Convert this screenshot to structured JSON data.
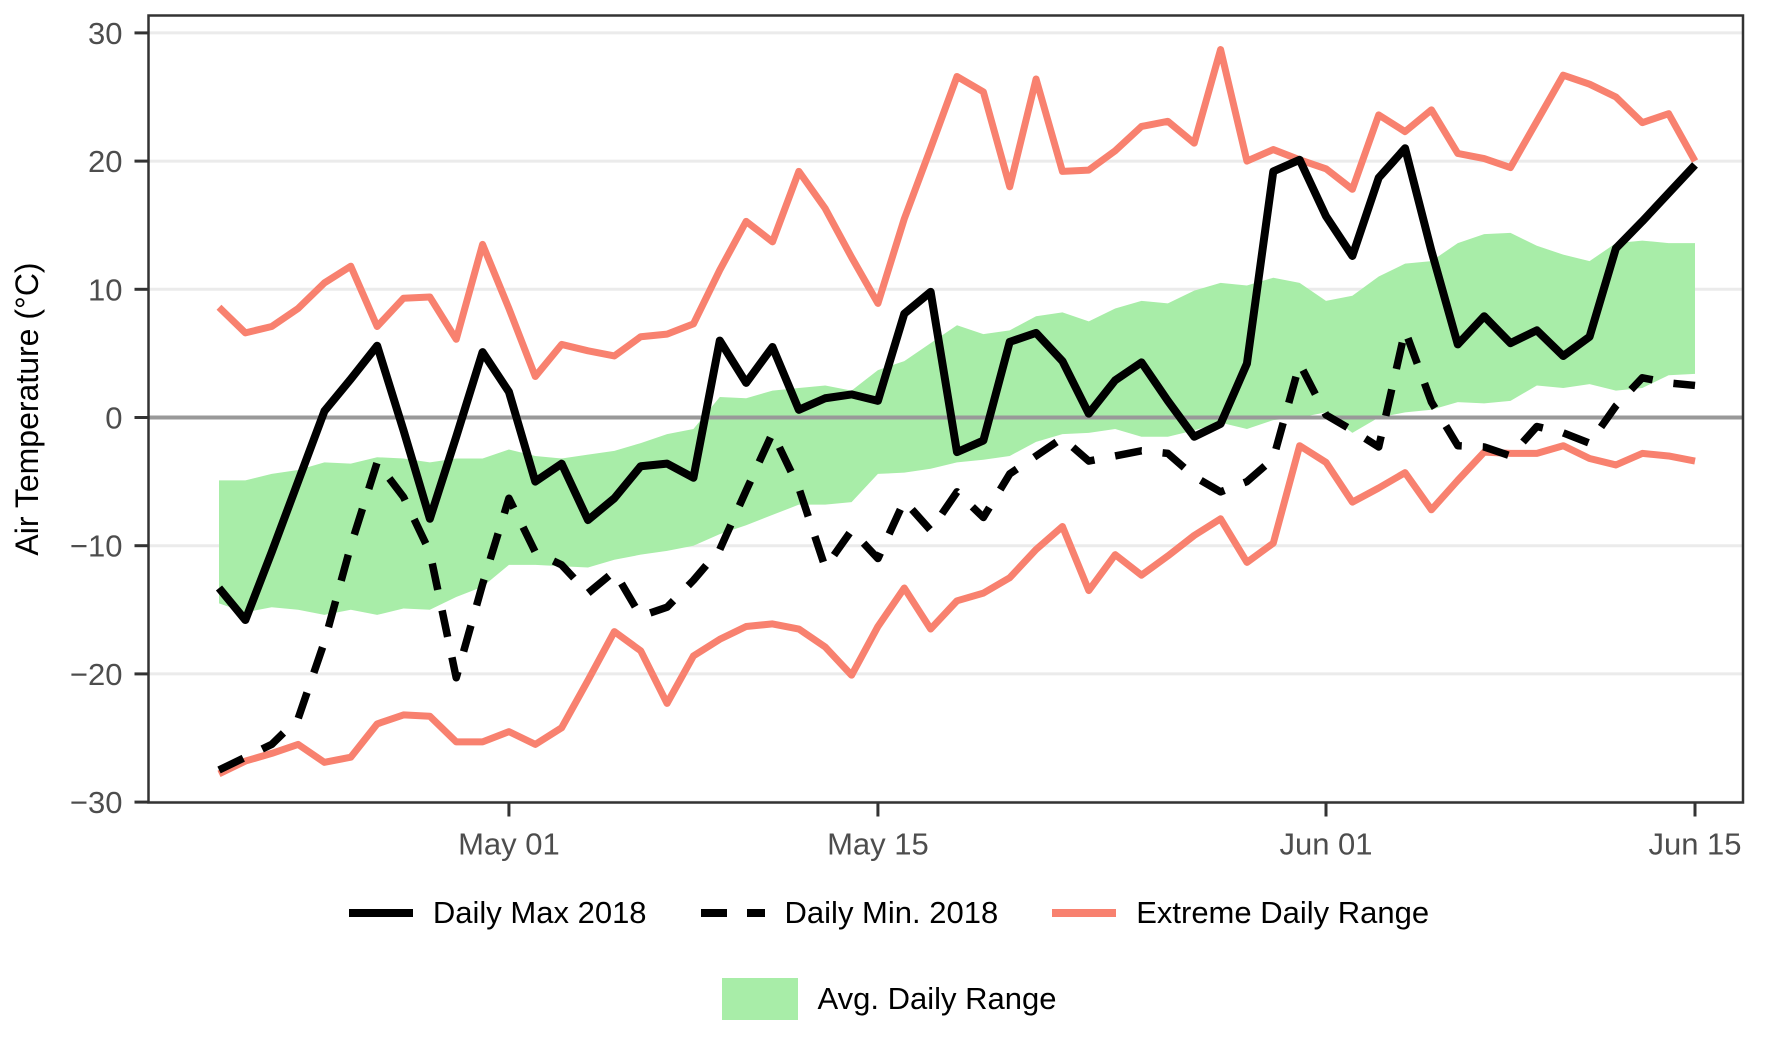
{
  "colors": {
    "daily_lines": "#000000",
    "extreme_range": "#F8816F",
    "avg_band": "#A8EDA8",
    "gridline": "#EBEBEB",
    "zero_line": "#999999",
    "axis_text": "#4D4D4D",
    "panel_border": "#333333"
  },
  "chart_data": {
    "type": "line",
    "title": "",
    "xlabel": "",
    "ylabel": "Air Temperature (°C)",
    "ylim": [
      -30,
      30
    ],
    "grid": "horizontal-only",
    "legend_position": "bottom",
    "zero_line": 0,
    "n_points": 57,
    "y_ticks": [
      {
        "value": 30,
        "label": "30"
      },
      {
        "value": 20,
        "label": "20"
      },
      {
        "value": 10,
        "label": "10"
      },
      {
        "value": 0,
        "label": "0"
      },
      {
        "value": -10,
        "label": "−10"
      },
      {
        "value": -20,
        "label": "−20"
      },
      {
        "value": -30,
        "label": "−30"
      }
    ],
    "x_ticks": [
      {
        "index": 11,
        "label": "May 01"
      },
      {
        "index": 25,
        "label": "May 15"
      },
      {
        "index": 42,
        "label": "Jun 01"
      },
      {
        "index": 56,
        "label": "Jun 15"
      }
    ],
    "series": [
      {
        "name": "Daily Max 2018",
        "type": "line",
        "style": "solid",
        "color": "#000000",
        "values": [
          -13.3,
          -15.8,
          -10.5,
          -5,
          0.5,
          3,
          5.6,
          -1,
          -7.9,
          -1.5,
          5.1,
          2,
          -5,
          -3.6,
          -8,
          -6.3,
          -3.8,
          -3.6,
          -4.7,
          6,
          2.7,
          5.5,
          0.6,
          1.5,
          1.8,
          1.3,
          8.1,
          9.8,
          -2.7,
          -1.8,
          5.9,
          6.6,
          4.4,
          0.3,
          2.9,
          4.3,
          1.3,
          -1.5,
          -0.5,
          4.2,
          19.2,
          20.1,
          15.7,
          12.6,
          18.7,
          21,
          13,
          5.7,
          7.9,
          5.8,
          6.8,
          4.8,
          6.3,
          13.2,
          15.3,
          17.5,
          19.7
        ]
      },
      {
        "name": "Daily Min. 2018",
        "type": "line",
        "style": "dashed",
        "color": "#000000",
        "values": [
          -27.5,
          -26.5,
          -25.5,
          -23.5,
          -17.5,
          -10,
          -3.5,
          -6.2,
          -10.5,
          -20.3,
          -13,
          -6.3,
          -10.5,
          -11.5,
          -13.7,
          -12,
          -15.5,
          -14.8,
          -12.7,
          -10.3,
          -5.7,
          -1.2,
          -5.5,
          -11.7,
          -8.8,
          -11,
          -6.5,
          -8.8,
          -5.8,
          -7.8,
          -4.4,
          -3,
          -1.6,
          -3.4,
          -3,
          -2.6,
          -2.8,
          -4.6,
          -5.8,
          -5,
          -3.2,
          4.2,
          0.2,
          -1,
          -2.3,
          6.8,
          1.2,
          -2.2,
          -2.3,
          -3,
          -0.7,
          -1.2,
          -2,
          0.9,
          3.1,
          2.7,
          2.5
        ]
      },
      {
        "name": "Extreme Daily Range",
        "type": "band-lines",
        "style": "solid",
        "color": "#F8816F",
        "upper": [
          8.6,
          6.6,
          7.1,
          8.5,
          10.5,
          11.8,
          7.1,
          9.3,
          9.4,
          6.1,
          13.5,
          8.5,
          3.2,
          5.7,
          5.2,
          4.8,
          6.3,
          6.5,
          7.3,
          11.5,
          15.3,
          13.7,
          19.2,
          16.3,
          12.5,
          8.9,
          15.5,
          21,
          26.6,
          25.4,
          18,
          26.4,
          19.2,
          19.3,
          20.8,
          22.7,
          23.1,
          21.4,
          28.7,
          20,
          20.9,
          20.1,
          19.4,
          17.8,
          23.6,
          22.3,
          24,
          20.6,
          20.2,
          19.5,
          23.1,
          26.7,
          26,
          25,
          23,
          23.7,
          20
        ],
        "lower": [
          -27.8,
          -26.8,
          -26.2,
          -25.5,
          -26.9,
          -26.5,
          -23.9,
          -23.2,
          -23.3,
          -25.3,
          -25.3,
          -24.5,
          -25.5,
          -24.2,
          -20.5,
          -16.7,
          -18.2,
          -22.3,
          -18.6,
          -17.3,
          -16.3,
          -16.1,
          -16.5,
          -17.9,
          -20.1,
          -16.3,
          -13.3,
          -16.5,
          -14.3,
          -13.7,
          -12.5,
          -10.3,
          -8.5,
          -13.5,
          -10.7,
          -12.3,
          -10.8,
          -9.2,
          -7.9,
          -11.3,
          -9.8,
          -2.2,
          -3.5,
          -6.6,
          -5.5,
          -4.3,
          -7.2,
          -4.9,
          -2.7,
          -2.8,
          -2.8,
          -2.2,
          -3.2,
          -3.7,
          -2.8,
          -3,
          -3.4
        ]
      },
      {
        "name": "Avg. Daily Range",
        "type": "area-band",
        "color": "#A8EDA8",
        "upper": [
          -4.9,
          -4.9,
          -4.4,
          -4.1,
          -3.5,
          -3.6,
          -3.1,
          -3.2,
          -3.5,
          -3.2,
          -3.2,
          -2.5,
          -3,
          -3.2,
          -2.9,
          -2.6,
          -2,
          -1.3,
          -0.9,
          1.6,
          1.5,
          2.1,
          2.3,
          2.5,
          2.1,
          3.7,
          4.4,
          5.8,
          7.2,
          6.5,
          6.8,
          7.9,
          8.2,
          7.5,
          8.5,
          9.1,
          8.9,
          9.9,
          10.5,
          10.3,
          10.9,
          10.5,
          9.1,
          9.5,
          11,
          12,
          12.2,
          13.6,
          14.3,
          14.4,
          13.4,
          12.7,
          12.2,
          13.6,
          13.8,
          13.6,
          13.6
        ],
        "lower": [
          -14.5,
          -15.2,
          -14.8,
          -15,
          -15.4,
          -15,
          -15.4,
          -14.9,
          -15,
          -14,
          -13.2,
          -11.5,
          -11.5,
          -11.6,
          -11.7,
          -11.1,
          -10.7,
          -10.4,
          -10,
          -9.1,
          -8.4,
          -7.6,
          -6.8,
          -6.8,
          -6.6,
          -4.4,
          -4.3,
          -4,
          -3.5,
          -3.3,
          -3,
          -1.9,
          -1.3,
          -1.2,
          -0.9,
          -1.5,
          -1.5,
          -1,
          -0.4,
          -0.9,
          -0.2,
          0,
          0.4,
          -1.2,
          0,
          0.4,
          0.6,
          1.2,
          1.1,
          1.3,
          2.5,
          2.3,
          2.6,
          2.1,
          2.3,
          3.3,
          3.4
        ]
      }
    ]
  }
}
